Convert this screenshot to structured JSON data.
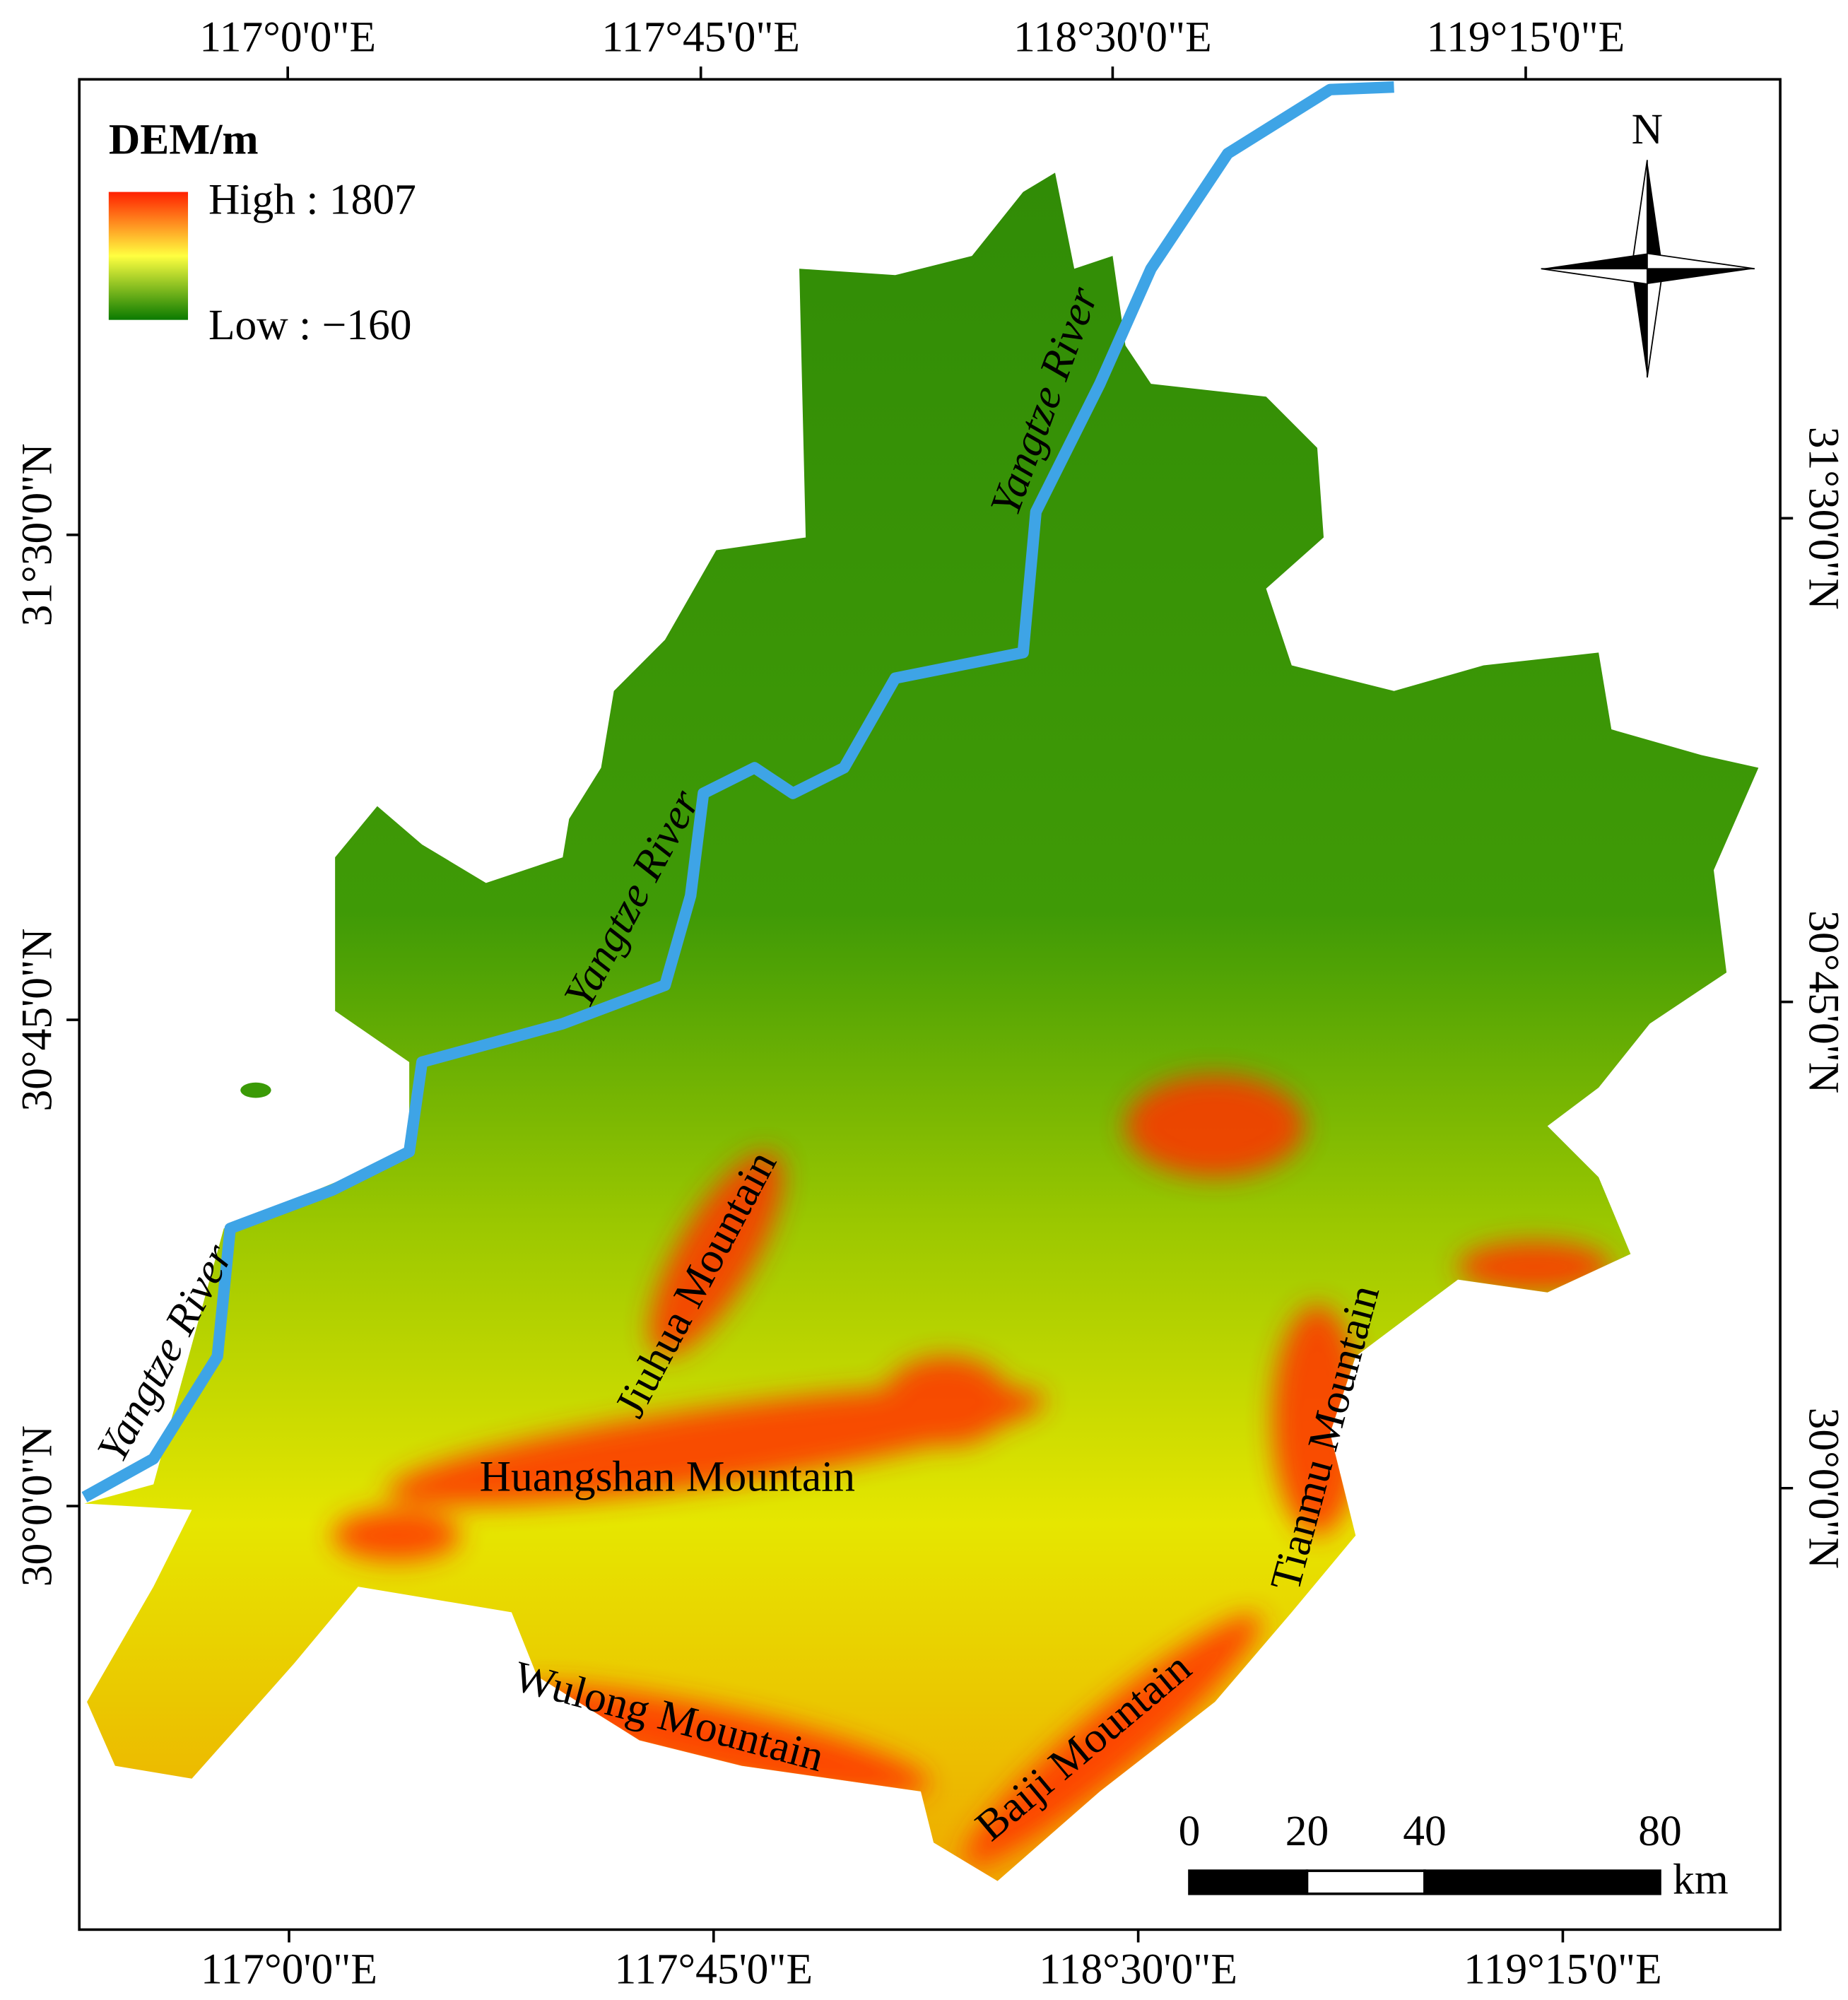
{
  "legend": {
    "title": "DEM/m",
    "high": "High : 1807",
    "low": "Low : −160"
  },
  "graticule": {
    "top": [
      "117°0'0\"E",
      "117°45'0\"E",
      "118°30'0\"E",
      "119°15'0\"E"
    ],
    "bottom": [
      "117°0'0\"E",
      "117°45'0\"E",
      "118°30'0\"E",
      "119°15'0\"E"
    ],
    "left": [
      "31°30'0\"N",
      "30°45'0\"N",
      "30°0'0\"N"
    ],
    "right": [
      "31°30'0\"N",
      "30°45'0\"N",
      "30°0'0\"N"
    ]
  },
  "north_arrow": "N",
  "rivers": [
    "Yangtze River",
    "Yangtze River",
    "Yangtze River"
  ],
  "mountains": [
    "Jiuhua Mountain",
    "Huangshan Mountain",
    "Wulong Mountain",
    "Baiji Mountain",
    "Tianmu Mountain"
  ],
  "scale_bar": {
    "ticks": [
      0,
      20,
      40,
      80
    ],
    "unit": "km"
  }
}
